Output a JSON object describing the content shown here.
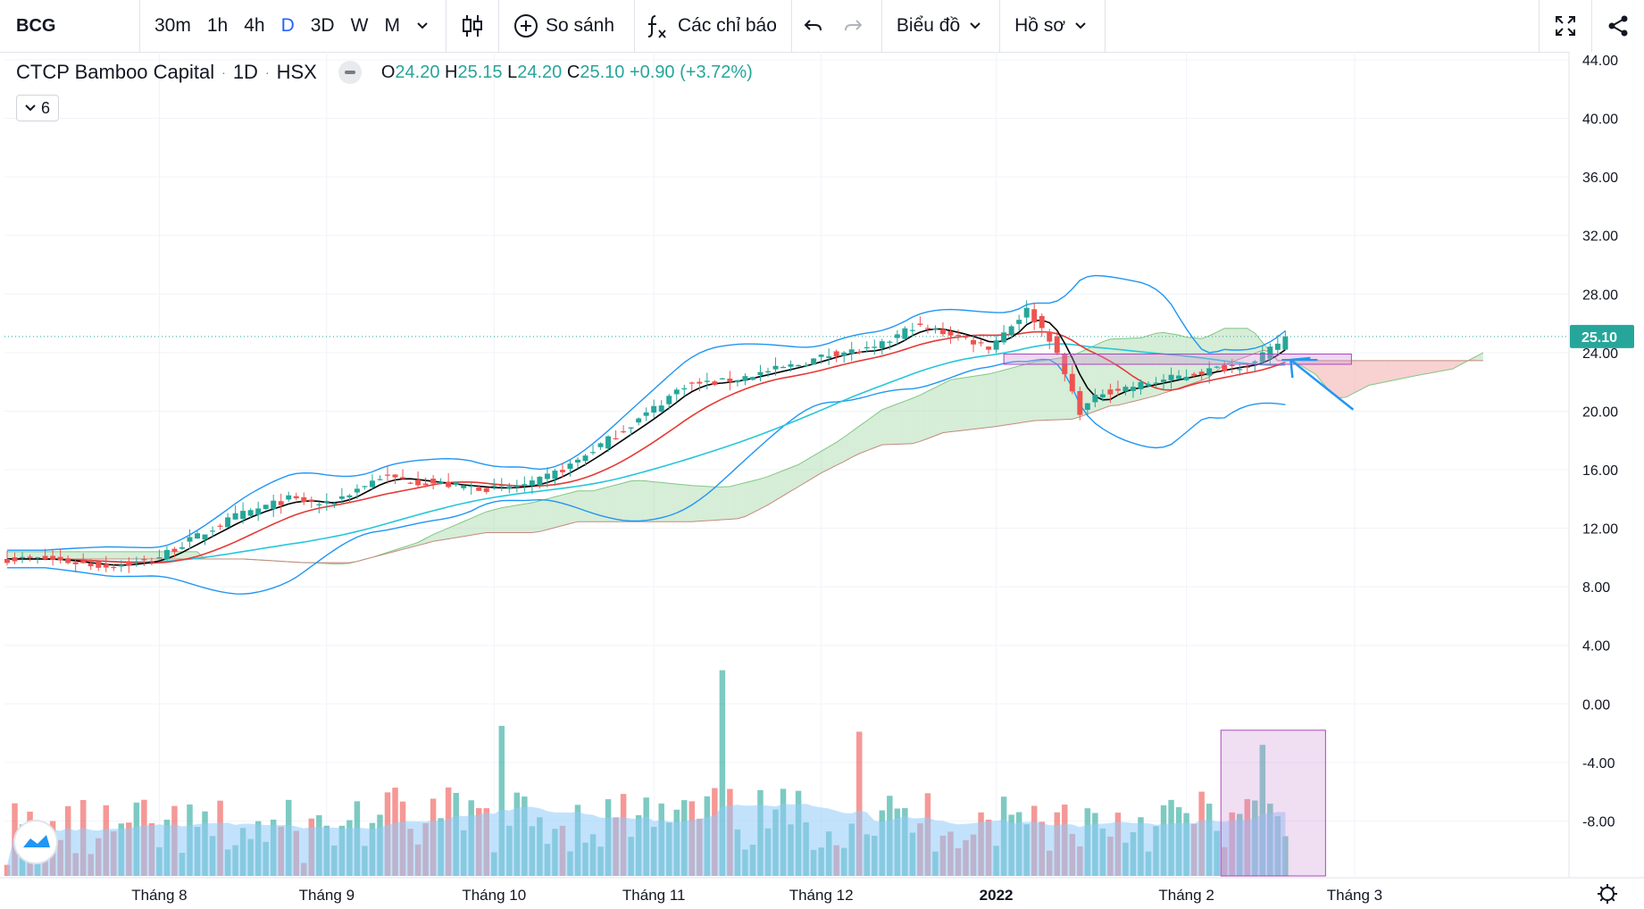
{
  "toolbar": {
    "symbol": "BCG",
    "intervals": [
      "30m",
      "1h",
      "4h",
      "D",
      "3D",
      "W",
      "M"
    ],
    "active_interval": "D",
    "compare_label": "So sánh",
    "indicators_label": "Các chỉ báo",
    "chart_menu_label": "Biểu đồ",
    "profile_label": "Hồ sơ",
    "icons": [
      "chevron-down-icon",
      "candles-icon",
      "plus-circle-icon",
      "fx-icon",
      "undo-icon",
      "redo-icon",
      "fullscreen-icon",
      "share-icon"
    ]
  },
  "legend": {
    "name": "CTCP Bamboo Capital",
    "interval": "1D",
    "exchange": "HSX",
    "o_label": "O",
    "o": "24.20",
    "h_label": "H",
    "h": "25.15",
    "l_label": "L",
    "l": "24.20",
    "c_label": "C",
    "c": "25.10",
    "change": "+0.90 (+3.72%)",
    "collapse_count": "6"
  },
  "colors": {
    "up": "#26a69a",
    "down": "#ef5350",
    "ma_short": "#000000",
    "ma_mid": "#e53935",
    "ma_long": "#26c6da",
    "bollinger": "#2196f3",
    "cloud_up": "#a5d6a7",
    "cloud_down": "#ef9a9a",
    "volume_ma": "#90caf9",
    "price_line": "#26a69a",
    "highlight": "#ce93d8",
    "arrow": "#2196f3"
  },
  "chart_data": {
    "type": "candlestick",
    "title": "CTCP Bamboo Capital",
    "y_ticks": [
      "44.00",
      "40.00",
      "36.00",
      "32.00",
      "28.00",
      "24.00",
      "20.00",
      "16.00",
      "12.00",
      "8.00",
      "4.00",
      "0.00",
      "-4.00",
      "-8.00"
    ],
    "y_range": [
      -12.0,
      44.0
    ],
    "x_labels": [
      {
        "label": "Tháng 8",
        "bold": false
      },
      {
        "label": "Tháng 9",
        "bold": false
      },
      {
        "label": "Tháng 10",
        "bold": false
      },
      {
        "label": "Tháng 11",
        "bold": false
      },
      {
        "label": "Tháng 12",
        "bold": false
      },
      {
        "label": "2022",
        "bold": true
      },
      {
        "label": "Tháng 2",
        "bold": false
      },
      {
        "label": "Tháng 3",
        "bold": false
      }
    ],
    "last_price": "25.10",
    "price_anchors": [
      {
        "date": "2021-07-12",
        "price": 9.9
      },
      {
        "date": "2021-07-22",
        "price": 9.4
      },
      {
        "date": "2021-07-30",
        "price": 9.8
      },
      {
        "date": "2021-08-16",
        "price": 12.8
      },
      {
        "date": "2021-08-25",
        "price": 14.0
      },
      {
        "date": "2021-09-01",
        "price": 13.6
      },
      {
        "date": "2021-09-10",
        "price": 15.5
      },
      {
        "date": "2021-09-24",
        "price": 14.9
      },
      {
        "date": "2021-10-01",
        "price": 14.7
      },
      {
        "date": "2021-10-08",
        "price": 15.0
      },
      {
        "date": "2021-10-15",
        "price": 16.3
      },
      {
        "date": "2021-10-29",
        "price": 19.8
      },
      {
        "date": "2021-11-05",
        "price": 21.8
      },
      {
        "date": "2021-11-12",
        "price": 22.0
      },
      {
        "date": "2021-11-26",
        "price": 23.2
      },
      {
        "date": "2021-12-03",
        "price": 24.0
      },
      {
        "date": "2021-12-10",
        "price": 24.2
      },
      {
        "date": "2021-12-17",
        "price": 25.8
      },
      {
        "date": "2021-12-24",
        "price": 25.3
      },
      {
        "date": "2021-12-31",
        "price": 24.4
      },
      {
        "date": "2022-01-07",
        "price": 26.9
      },
      {
        "date": "2022-01-12",
        "price": 25.0
      },
      {
        "date": "2022-01-18",
        "price": 20.0
      },
      {
        "date": "2022-01-21",
        "price": 21.3
      },
      {
        "date": "2022-01-28",
        "price": 21.8
      },
      {
        "date": "2022-02-11",
        "price": 22.9
      },
      {
        "date": "2022-02-18",
        "price": 23.3
      },
      {
        "date": "2022-02-24",
        "price": 25.1
      }
    ],
    "volume_spikes": [
      {
        "date": "2021-11-12",
        "level": 2.3
      },
      {
        "date": "2021-12-08",
        "level": -1.9
      },
      {
        "date": "2021-10-04",
        "level": -1.5
      },
      {
        "date": "2022-02-21",
        "level": -2.8
      }
    ]
  }
}
